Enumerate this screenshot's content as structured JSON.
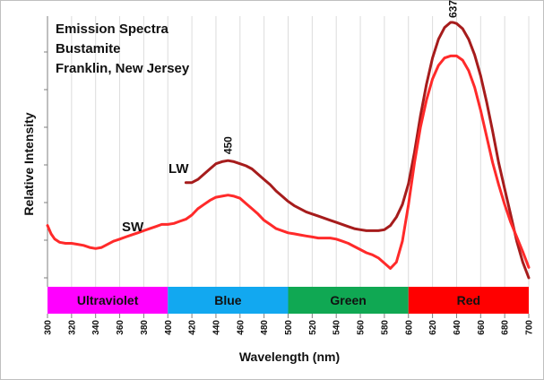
{
  "chart_data": {
    "type": "line",
    "title_lines": [
      "Emission Spectra",
      "Bustamite",
      "Franklin, New Jersey"
    ],
    "xlabel": "Wavelength (nm)",
    "ylabel": "Relative Intensity",
    "xlim": [
      300,
      700
    ],
    "ylim": [
      0,
      100
    ],
    "x_ticks": [
      300,
      320,
      340,
      360,
      380,
      400,
      420,
      440,
      460,
      480,
      500,
      520,
      540,
      560,
      580,
      600,
      620,
      640,
      660,
      680,
      700
    ],
    "y_tick_count": 7,
    "series": [
      {
        "name": "LW",
        "color": "#a61c1c",
        "x": [
          415,
          420,
          425,
          430,
          435,
          440,
          445,
          450,
          455,
          460,
          465,
          470,
          475,
          480,
          485,
          490,
          495,
          500,
          505,
          510,
          515,
          520,
          525,
          530,
          535,
          540,
          545,
          550,
          555,
          560,
          565,
          570,
          575,
          580,
          585,
          590,
          595,
          600,
          605,
          610,
          615,
          620,
          625,
          630,
          635,
          637,
          640,
          645,
          650,
          655,
          660,
          665,
          670,
          675,
          680,
          685,
          690,
          695,
          700
        ],
        "y": [
          36.4,
          36.4,
          37.6,
          39.6,
          41.6,
          43.6,
          44.4,
          44.8,
          44.4,
          43.6,
          42.8,
          41.6,
          39.6,
          37.6,
          35.6,
          33.2,
          31.2,
          29.2,
          27.6,
          26.4,
          25.2,
          24.4,
          23.6,
          22.8,
          22.0,
          21.2,
          20.4,
          19.6,
          18.8,
          18.4,
          18.0,
          18.0,
          18.0,
          18.4,
          20.0,
          23.2,
          28.0,
          36.0,
          48.0,
          62.0,
          74.0,
          84.0,
          91.2,
          95.6,
          97.6,
          97.6,
          97.2,
          95.2,
          91.2,
          85.2,
          77.2,
          67.2,
          56.0,
          44.0,
          34.0,
          24.0,
          14.0,
          6.0,
          0.0
        ]
      },
      {
        "name": "SW",
        "color": "#ff2a2a",
        "x": [
          300,
          303,
          306,
          310,
          315,
          320,
          325,
          330,
          335,
          340,
          345,
          350,
          355,
          360,
          365,
          370,
          375,
          380,
          385,
          390,
          395,
          400,
          405,
          410,
          415,
          420,
          425,
          430,
          435,
          440,
          445,
          450,
          455,
          460,
          465,
          470,
          475,
          480,
          485,
          490,
          495,
          500,
          505,
          510,
          515,
          520,
          525,
          530,
          535,
          540,
          545,
          550,
          555,
          560,
          565,
          570,
          575,
          580,
          585,
          590,
          595,
          600,
          605,
          610,
          615,
          620,
          625,
          630,
          635,
          640,
          645,
          650,
          655,
          660,
          665,
          670,
          675,
          680,
          685,
          690,
          695,
          700
        ],
        "y": [
          20.0,
          16.8,
          14.8,
          13.6,
          13.2,
          13.2,
          12.8,
          12.4,
          11.6,
          11.2,
          11.6,
          12.8,
          14.0,
          14.8,
          15.6,
          16.4,
          17.2,
          18.0,
          18.8,
          19.6,
          20.4,
          20.4,
          20.8,
          21.6,
          22.4,
          24.0,
          26.4,
          28.0,
          29.6,
          30.8,
          31.2,
          31.6,
          31.2,
          30.4,
          28.4,
          26.4,
          24.4,
          22.0,
          20.4,
          18.8,
          18.0,
          17.2,
          16.8,
          16.4,
          16.0,
          15.6,
          15.2,
          15.2,
          15.2,
          14.8,
          14.0,
          13.2,
          12.0,
          10.8,
          9.6,
          8.8,
          7.6,
          5.6,
          3.6,
          6.0,
          14.0,
          28.0,
          44.0,
          57.6,
          68.0,
          76.0,
          81.2,
          84.0,
          84.8,
          84.8,
          83.2,
          79.2,
          72.8,
          64.0,
          54.0,
          44.0,
          35.6,
          28.0,
          21.2,
          15.6,
          10.0,
          4.0
        ]
      }
    ],
    "annotations": {
      "peak_lw": {
        "x": 450,
        "label": "450"
      },
      "peak_red": {
        "x": 637,
        "label": "637"
      },
      "lw_label": "LW",
      "sw_label": "SW"
    },
    "bands": [
      {
        "label": "Ultraviolet",
        "from": 300,
        "to": 400,
        "color": "#ff00ff",
        "text_color": "#111111"
      },
      {
        "label": "Blue",
        "from": 400,
        "to": 500,
        "color": "#12a8f0",
        "text_color": "#111111"
      },
      {
        "label": "Green",
        "from": 500,
        "to": 600,
        "color": "#10a853",
        "text_color": "#111111"
      },
      {
        "label": "Red",
        "from": 600,
        "to": 700,
        "color": "#ff0000",
        "text_color": "#111111"
      }
    ]
  }
}
